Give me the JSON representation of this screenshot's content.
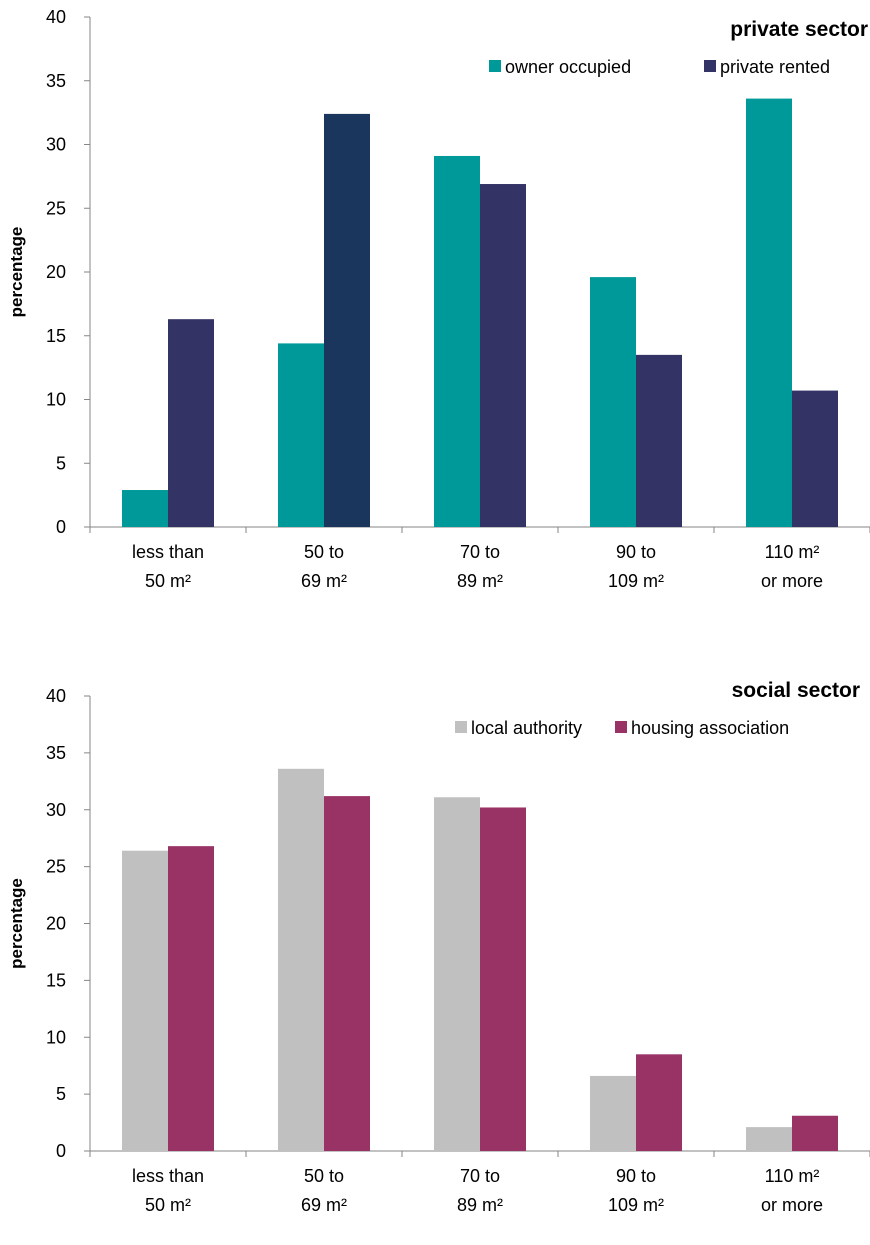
{
  "chart_data": [
    {
      "type": "bar",
      "title": "private sector",
      "ylabel": "percentage",
      "xlabel": "",
      "ylim": [
        0,
        40
      ],
      "yticks": [
        0,
        5,
        10,
        15,
        20,
        25,
        30,
        35,
        40
      ],
      "categories": [
        [
          "less than",
          "50 m²"
        ],
        [
          "50 to",
          "69 m²"
        ],
        [
          "70 to",
          "89 m²"
        ],
        [
          "90 to",
          "109 m²"
        ],
        [
          "110 m²",
          "or more"
        ]
      ],
      "legend_position": "top-right",
      "series": [
        {
          "name": "owner occupied",
          "color": "#009999",
          "values": [
            2.9,
            14.4,
            29.1,
            19.6,
            33.6
          ]
        },
        {
          "name": "private rented",
          "color": "#333366",
          "values": [
            16.3,
            32.4,
            26.9,
            13.5,
            10.7
          ]
        }
      ],
      "highlight": {
        "series": 1,
        "category": 1,
        "color": "#1a365c"
      }
    },
    {
      "type": "bar",
      "title": "social sector",
      "ylabel": "percentage",
      "xlabel": "",
      "ylim": [
        0,
        40
      ],
      "yticks": [
        0,
        5,
        10,
        15,
        20,
        25,
        30,
        35,
        40
      ],
      "categories": [
        [
          "less than",
          "50 m²"
        ],
        [
          "50 to",
          "69 m²"
        ],
        [
          "70 to",
          "89 m²"
        ],
        [
          "90 to",
          "109 m²"
        ],
        [
          "110 m²",
          "or more"
        ]
      ],
      "legend_position": "top-right",
      "series": [
        {
          "name": "local authority",
          "color": "#c0c0c0",
          "values": [
            26.4,
            33.6,
            31.1,
            6.6,
            2.1
          ]
        },
        {
          "name": "housing association",
          "color": "#993366",
          "values": [
            26.8,
            31.2,
            30.2,
            8.5,
            3.1
          ]
        }
      ]
    }
  ]
}
